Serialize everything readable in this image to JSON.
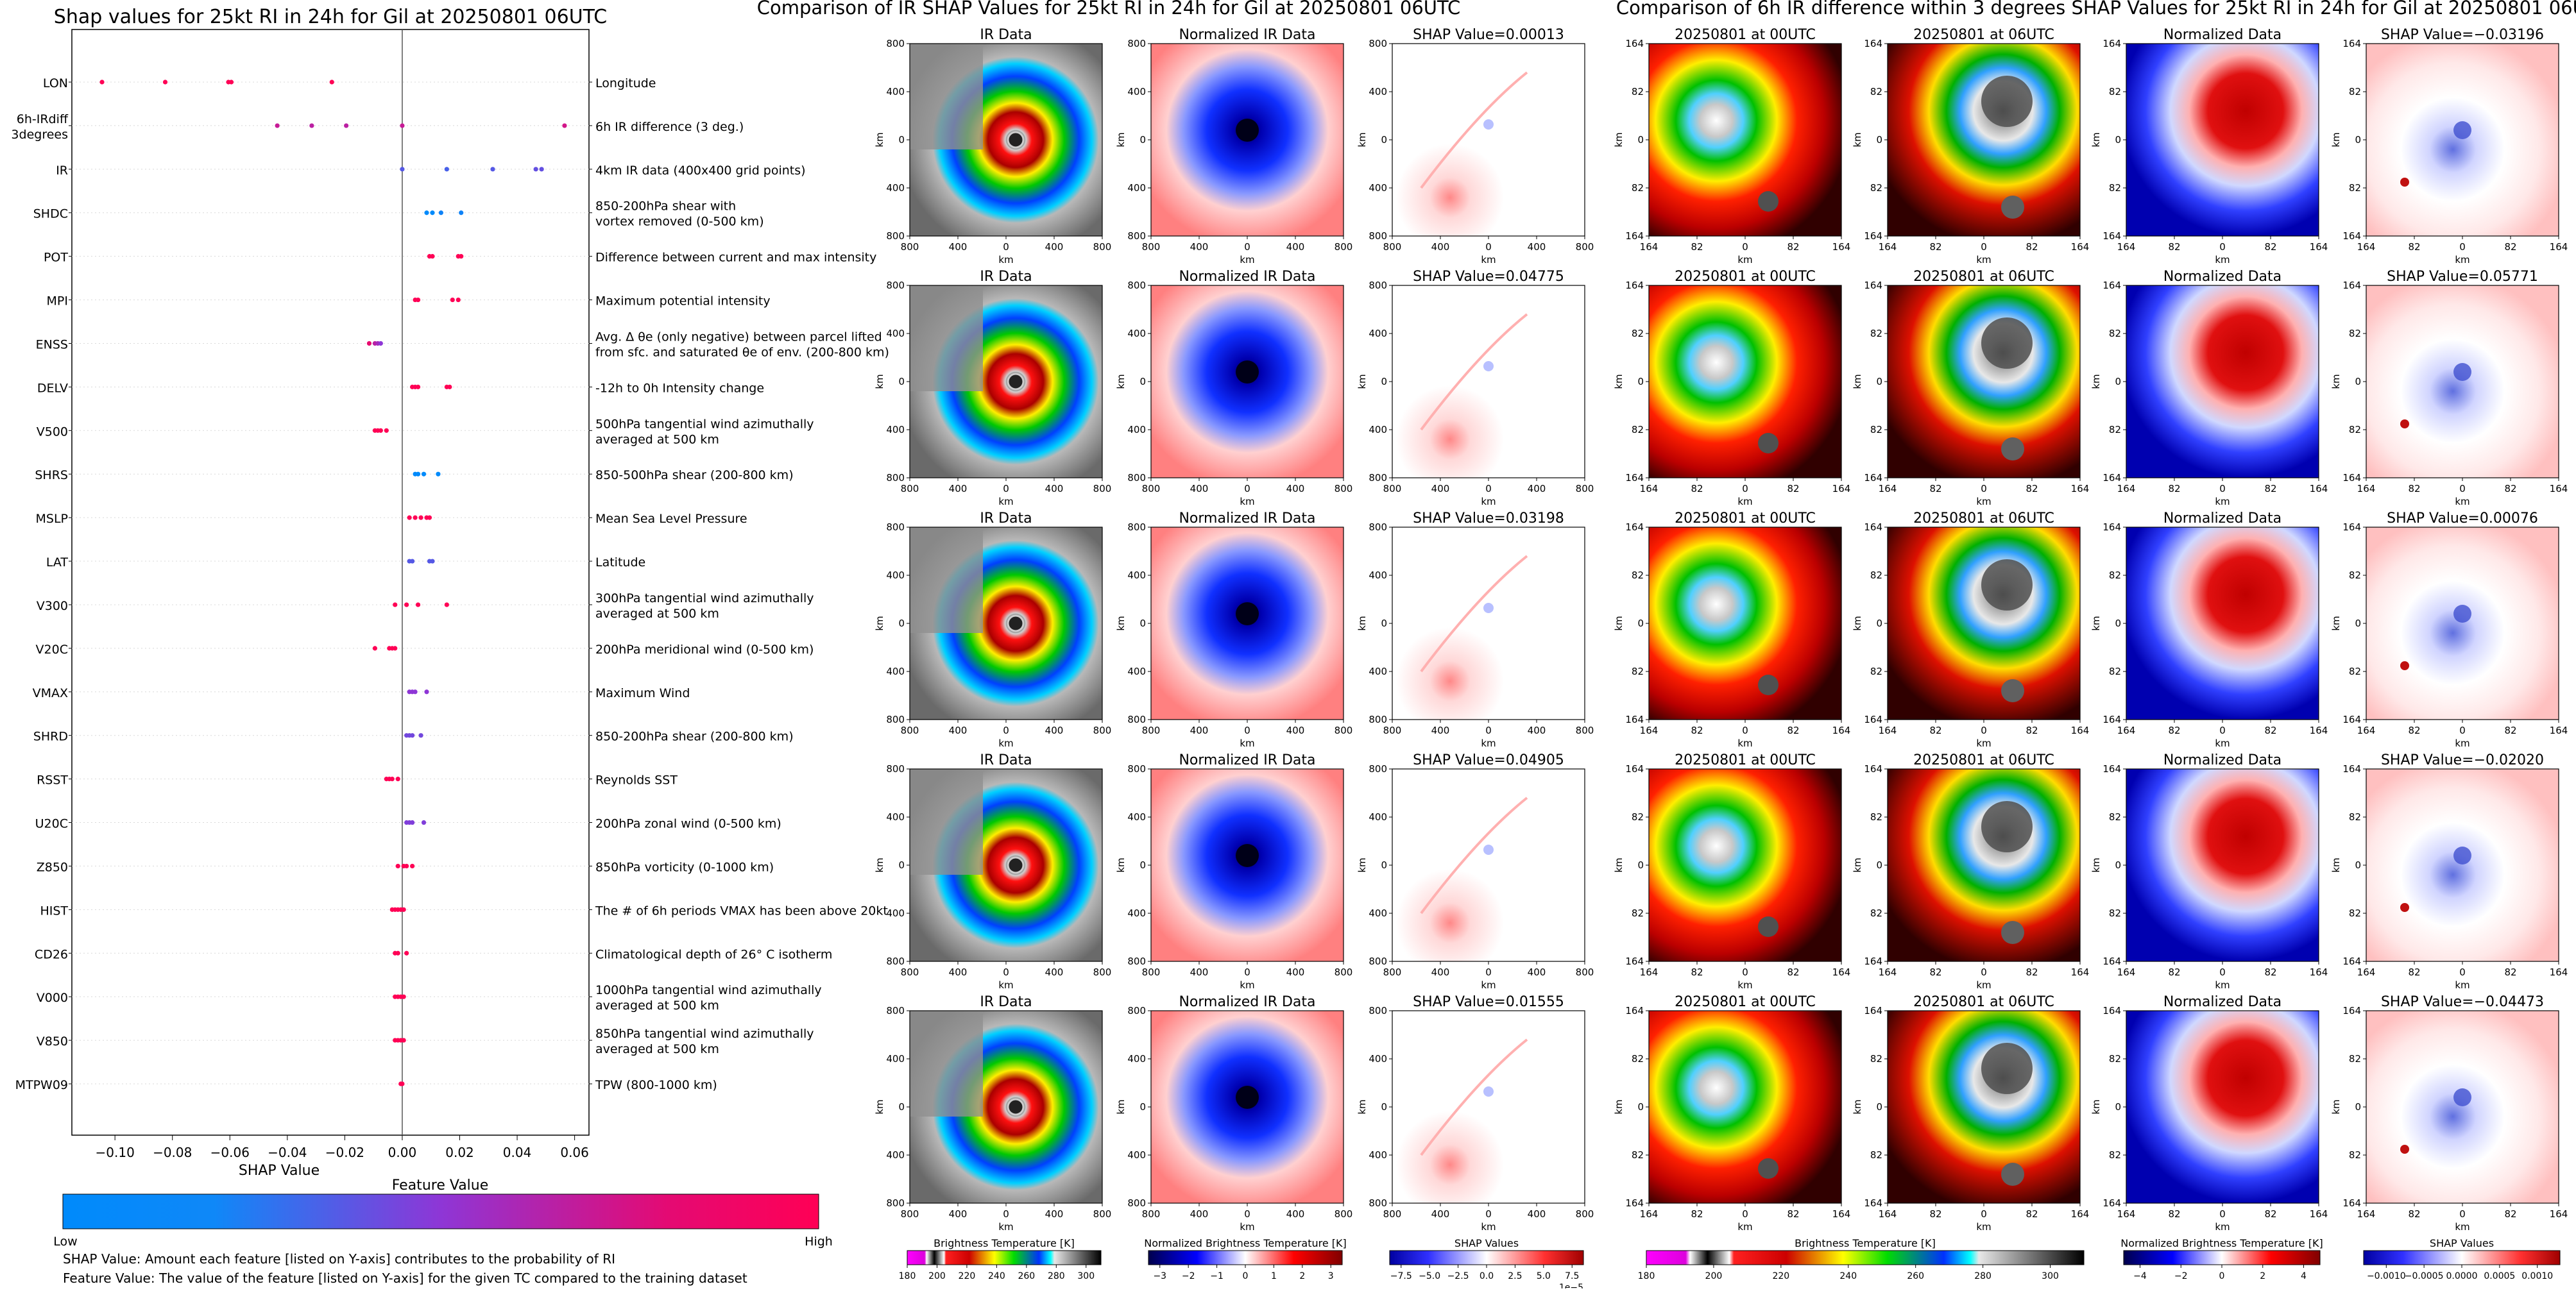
{
  "left": {
    "title": "Shap values for 25kt RI in 24h for Gil at 20250801 06UTC",
    "xlabel": "SHAP Value",
    "colorbar_title": "Feature Value",
    "colorbar_low": "Low",
    "colorbar_high": "High",
    "note1": "SHAP Value: Amount each feature [listed on Y-axis] contributes to the probability of RI",
    "note2": "Feature Value: The value of the feature [listed on Y-axis] for the given TC compared to the training dataset"
  },
  "chart_data": [
    {
      "type": "scatter",
      "title": "Shap values for 25kt RI in 24h for Gil at 20250801 06UTC",
      "xlabel": "SHAP Value",
      "xlim": [
        -0.115,
        0.065
      ],
      "xticks": [
        "−0.10",
        "−0.08",
        "−0.06",
        "−0.04",
        "−0.02",
        "0.00",
        "0.02",
        "0.04",
        "0.06"
      ],
      "xtick_values": [
        -0.1,
        -0.08,
        -0.06,
        -0.04,
        -0.02,
        0.0,
        0.02,
        0.04,
        0.06
      ],
      "colors": {
        "low": "#008afb",
        "mid": "#8e36d6",
        "high": "#ff0055"
      },
      "features": [
        {
          "name": "LON",
          "desc": "Longitude",
          "points": [
            [
              -0.1045,
              1.0
            ],
            [
              -0.0825,
              1.0
            ],
            [
              -0.0605,
              1.0
            ],
            [
              -0.0595,
              1.0
            ],
            [
              -0.0245,
              1.0
            ]
          ]
        },
        {
          "name": "6h-IRdiff\n3degrees",
          "desc": "6h IR difference (3 deg.)",
          "points": [
            [
              -0.0435,
              0.75
            ],
            [
              -0.0315,
              0.7
            ],
            [
              -0.0195,
              0.7
            ],
            [
              0.0,
              0.75
            ],
            [
              0.0565,
              0.8
            ]
          ]
        },
        {
          "name": "IR",
          "desc": "4km IR data (400x400 grid points)",
          "points": [
            [
              0.0,
              0.3
            ],
            [
              0.0155,
              0.25
            ],
            [
              0.0315,
              0.3
            ],
            [
              0.0465,
              0.35
            ],
            [
              0.0485,
              0.35
            ]
          ]
        },
        {
          "name": "SHDC",
          "desc": "850-200hPa shear with\nvortex removed (0-500 km)",
          "points": [
            [
              0.0085,
              0.0
            ],
            [
              0.0105,
              0.0
            ],
            [
              0.0135,
              0.05
            ],
            [
              0.0205,
              0.05
            ]
          ]
        },
        {
          "name": "POT",
          "desc": "Difference between current and max intensity",
          "points": [
            [
              0.0095,
              1.0
            ],
            [
              0.0105,
              1.0
            ],
            [
              0.0195,
              1.0
            ],
            [
              0.0205,
              1.0
            ]
          ]
        },
        {
          "name": "MPI",
          "desc": "Maximum potential intensity",
          "points": [
            [
              0.0045,
              1.0
            ],
            [
              0.0055,
              1.0
            ],
            [
              0.0175,
              1.0
            ],
            [
              0.0195,
              1.0
            ]
          ]
        },
        {
          "name": "ENSS",
          "desc": "Avg. Δ θe (only negative) between parcel lifted\nfrom sfc. and saturated θe of env. (200-800 km)",
          "points": [
            [
              -0.0115,
              0.9
            ],
            [
              -0.0095,
              0.7
            ],
            [
              -0.0085,
              0.6
            ],
            [
              -0.0075,
              0.5
            ]
          ]
        },
        {
          "name": "DELV",
          "desc": "-12h to 0h Intensity change",
          "points": [
            [
              0.0035,
              1.0
            ],
            [
              0.0045,
              1.0
            ],
            [
              0.0055,
              1.0
            ],
            [
              0.0155,
              1.0
            ],
            [
              0.0165,
              1.0
            ]
          ]
        },
        {
          "name": "V500",
          "desc": "500hPa tangential wind azimuthally\naveraged at 500 km",
          "points": [
            [
              -0.0095,
              1.0
            ],
            [
              -0.0085,
              1.0
            ],
            [
              -0.0075,
              1.0
            ],
            [
              -0.0055,
              1.0
            ]
          ]
        },
        {
          "name": "SHRS",
          "desc": "850-500hPa shear (200-800 km)",
          "points": [
            [
              0.0045,
              0.0
            ],
            [
              0.0055,
              0.0
            ],
            [
              0.0075,
              0.0
            ],
            [
              0.0125,
              0.0
            ]
          ]
        },
        {
          "name": "MSLP",
          "desc": "Mean Sea Level Pressure",
          "points": [
            [
              0.0025,
              1.0
            ],
            [
              0.0045,
              1.0
            ],
            [
              0.0065,
              1.0
            ],
            [
              0.0085,
              1.0
            ],
            [
              0.0095,
              1.0
            ]
          ]
        },
        {
          "name": "LAT",
          "desc": "Latitude",
          "points": [
            [
              0.0025,
              0.3
            ],
            [
              0.0035,
              0.3
            ],
            [
              0.0095,
              0.3
            ],
            [
              0.0105,
              0.3
            ]
          ]
        },
        {
          "name": "V300",
          "desc": "300hPa tangential wind azimuthally\naveraged at 500 km",
          "points": [
            [
              -0.0025,
              1.0
            ],
            [
              0.0015,
              1.0
            ],
            [
              0.0055,
              1.0
            ],
            [
              0.0155,
              1.0
            ]
          ]
        },
        {
          "name": "V20C",
          "desc": "200hPa meridional wind (0-500 km)",
          "points": [
            [
              -0.0095,
              1.0
            ],
            [
              -0.0045,
              1.0
            ],
            [
              -0.0035,
              1.0
            ],
            [
              -0.0025,
              1.0
            ]
          ]
        },
        {
          "name": "VMAX",
          "desc": "Maximum Wind",
          "points": [
            [
              0.0025,
              0.5
            ],
            [
              0.0035,
              0.5
            ],
            [
              0.0045,
              0.5
            ],
            [
              0.0085,
              0.5
            ]
          ]
        },
        {
          "name": "SHRD",
          "desc": "850-200hPa shear (200-800 km)",
          "points": [
            [
              0.0015,
              0.4
            ],
            [
              0.0025,
              0.4
            ],
            [
              0.0035,
              0.4
            ],
            [
              0.0065,
              0.4
            ]
          ]
        },
        {
          "name": "RSST",
          "desc": "Reynolds SST",
          "points": [
            [
              -0.0055,
              1.0
            ],
            [
              -0.0045,
              1.0
            ],
            [
              -0.0035,
              1.0
            ],
            [
              -0.0015,
              1.0
            ]
          ]
        },
        {
          "name": "U20C",
          "desc": "200hPa zonal wind (0-500 km)",
          "points": [
            [
              0.0015,
              0.45
            ],
            [
              0.0025,
              0.45
            ],
            [
              0.0035,
              0.45
            ],
            [
              0.0075,
              0.45
            ]
          ]
        },
        {
          "name": "Z850",
          "desc": "850hPa vorticity (0-1000 km)",
          "points": [
            [
              -0.0015,
              1.0
            ],
            [
              0.0005,
              1.0
            ],
            [
              0.0015,
              1.0
            ],
            [
              0.0035,
              1.0
            ]
          ]
        },
        {
          "name": "HIST",
          "desc": "The # of 6h periods VMAX has been above 20kt",
          "points": [
            [
              -0.0035,
              1.0
            ],
            [
              -0.0025,
              1.0
            ],
            [
              -0.0015,
              1.0
            ],
            [
              -0.0005,
              1.0
            ],
            [
              0.0005,
              1.0
            ]
          ]
        },
        {
          "name": "CD26",
          "desc": "Climatological depth of 26° C isotherm",
          "points": [
            [
              -0.0025,
              1.0
            ],
            [
              -0.0015,
              1.0
            ],
            [
              0.0015,
              1.0
            ]
          ]
        },
        {
          "name": "V000",
          "desc": "1000hPa tangential wind azimuthally\naveraged at 500 km",
          "points": [
            [
              -0.0025,
              1.0
            ],
            [
              -0.0015,
              1.0
            ],
            [
              -0.0005,
              1.0
            ],
            [
              0.0005,
              1.0
            ]
          ]
        },
        {
          "name": "V850",
          "desc": "850hPa tangential wind azimuthally\naveraged at 500 km",
          "points": [
            [
              -0.0025,
              1.0
            ],
            [
              -0.0015,
              1.0
            ],
            [
              -0.0005,
              1.0
            ],
            [
              0.0005,
              1.0
            ]
          ]
        },
        {
          "name": "MTPW09",
          "desc": "TPW (800-1000 km)",
          "points": [
            [
              -0.0005,
              1.0
            ],
            [
              0.0,
              1.0
            ]
          ]
        }
      ]
    },
    {
      "type": "heatmap",
      "title": "Comparison of IR SHAP Values for 25kt RI in 24h for Gil at 20250801 06UTC",
      "column_titles": [
        "IR Data",
        "Normalized IR Data"
      ],
      "shap_values": [
        "SHAP Value=0.00013",
        "SHAP Value=0.04775",
        "SHAP Value=0.03198",
        "SHAP Value=0.04905",
        "SHAP Value=0.01555"
      ],
      "axis_label": "km",
      "ticks": [
        "800",
        "400",
        "0",
        "400",
        "800"
      ],
      "colorbars": [
        {
          "label": "Brightness Temperature [K]",
          "ticks": [
            "180",
            "200",
            "220",
            "240",
            "260",
            "280",
            "300"
          ],
          "range": [
            180,
            310
          ]
        },
        {
          "label": "Normalized Brightness Temperature [K]",
          "ticks": [
            "−3",
            "−2",
            "−1",
            "0",
            "1",
            "2",
            "3"
          ],
          "range": [
            -3.4,
            3.4
          ]
        },
        {
          "label": "SHAP Values",
          "ticks": [
            "−7.5",
            "−5.0",
            "−2.5",
            "0.0",
            "2.5",
            "5.0",
            "7.5"
          ],
          "range": [
            -8.5,
            8.5
          ],
          "offset": "1e−5"
        }
      ]
    },
    {
      "type": "heatmap",
      "title": "Comparison of 6h IR difference within 3 degrees SHAP Values for 25kt RI in 24h for Gil at 20250801 06UTC",
      "column_titles": [
        "20250801 at 00UTC",
        "20250801 at 06UTC",
        "Normalized Data"
      ],
      "shap_values": [
        "SHAP Value=−0.03196",
        "SHAP Value=0.05771",
        "SHAP Value=0.00076",
        "SHAP Value=−0.02020",
        "SHAP Value=−0.04473"
      ],
      "axis_label": "km",
      "ticks": [
        "164",
        "82",
        "0",
        "82",
        "164"
      ],
      "colorbars": [
        {
          "label": "Brightness Temperature [K]",
          "ticks": [
            "180",
            "200",
            "220",
            "240",
            "260",
            "280",
            "300"
          ],
          "range": [
            180,
            310
          ]
        },
        {
          "label": "Normalized Brightness Temperature [K]",
          "ticks": [
            "−4",
            "−2",
            "0",
            "2",
            "4"
          ],
          "range": [
            -4.8,
            4.8
          ]
        },
        {
          "label": "SHAP Values",
          "ticks": [
            "−0.0010",
            "−0.0005",
            "0.0000",
            "0.0005",
            "0.0010"
          ],
          "range": [
            -0.0013,
            0.0013
          ]
        }
      ]
    }
  ]
}
